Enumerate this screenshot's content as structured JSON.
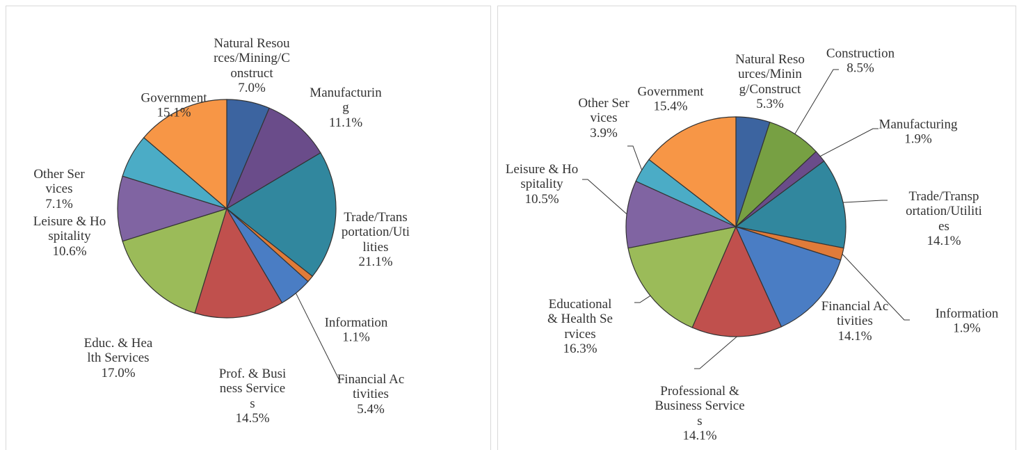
{
  "chart_data": [
    {
      "type": "pie",
      "categories": [
        "Natural Resources/Mining/Construct",
        "Manufacturing",
        "Trade/Transportation/Utilities",
        "Information",
        "Financial Activities",
        "Prof. & Business Services",
        "Educ. & Health Services",
        "Leisure & Hospitality",
        "Other Services",
        "Government"
      ],
      "values": [
        7.0,
        11.1,
        21.1,
        1.1,
        5.4,
        14.5,
        17.0,
        10.6,
        7.1,
        15.1
      ],
      "value_labels": [
        "7.0%",
        "11.1%",
        "21.1%",
        "1.1%",
        "5.4%",
        "14.5%",
        "17.0%",
        "10.6%",
        "7.1%",
        "15.1%"
      ],
      "colors": [
        "#3c64a0",
        "#6a4c8a",
        "#31879e",
        "#e07b39",
        "#4a7dc4",
        "#c0504d",
        "#9bbb59",
        "#8064a2",
        "#4bacc6",
        "#f79646"
      ]
    },
    {
      "type": "pie",
      "categories": [
        "Natural Resources/Mining/Construct",
        "Construction",
        "Manufacturing",
        "Trade/Transportation/Utilities",
        "Information",
        "Financial Activities",
        "Professional & Business Services",
        "Educational & Health Services",
        "Leisure & Hospitality",
        "Other Services",
        "Government"
      ],
      "values": [
        5.3,
        8.5,
        1.9,
        14.1,
        1.9,
        14.1,
        14.1,
        16.3,
        10.5,
        3.9,
        15.4
      ],
      "value_labels": [
        "5.3%",
        "8.5%",
        "1.9%",
        "14.1%",
        "1.9%",
        "14.1%",
        "14.1%",
        "16.3%",
        "10.5%",
        "3.9%",
        "15.4%"
      ],
      "colors": [
        "#3c64a0",
        "#77a043",
        "#6a4c8a",
        "#31879e",
        "#e07b39",
        "#4a7dc4",
        "#c0504d",
        "#9bbb59",
        "#8064a2",
        "#4bacc6",
        "#f79646"
      ]
    }
  ]
}
